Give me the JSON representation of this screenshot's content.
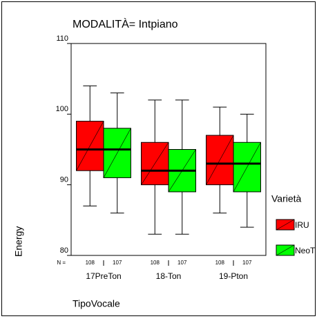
{
  "chart_data": {
    "type": "boxplot",
    "title": "MODALITÀ= Intpiano",
    "x_label": "TipoVocale",
    "y_label": "Energy",
    "categories": [
      "17PreTon",
      "18-Ton",
      "19-Pton"
    ],
    "n_label": "N =",
    "legend_title": "Varietà",
    "ylim": [
      80,
      110
    ],
    "yticks": [
      80,
      90,
      100,
      110
    ],
    "series": [
      {
        "name": "IRU",
        "color": "#ff0000",
        "n": [
          108,
          108,
          108
        ],
        "whisker_low": [
          87,
          83,
          86
        ],
        "q1": [
          92,
          90,
          90
        ],
        "median": [
          95,
          92,
          93
        ],
        "q3": [
          99,
          96,
          97
        ],
        "whisker_high": [
          104,
          102,
          101
        ]
      },
      {
        "name": "NeoT",
        "color": "#00ff00",
        "n": [
          107,
          107,
          107
        ],
        "whisker_low": [
          86,
          83,
          84
        ],
        "q1": [
          91,
          89,
          89
        ],
        "median": [
          95,
          92,
          93
        ],
        "q3": [
          98,
          95,
          96
        ],
        "whisker_high": [
          103,
          102,
          100
        ]
      }
    ]
  }
}
